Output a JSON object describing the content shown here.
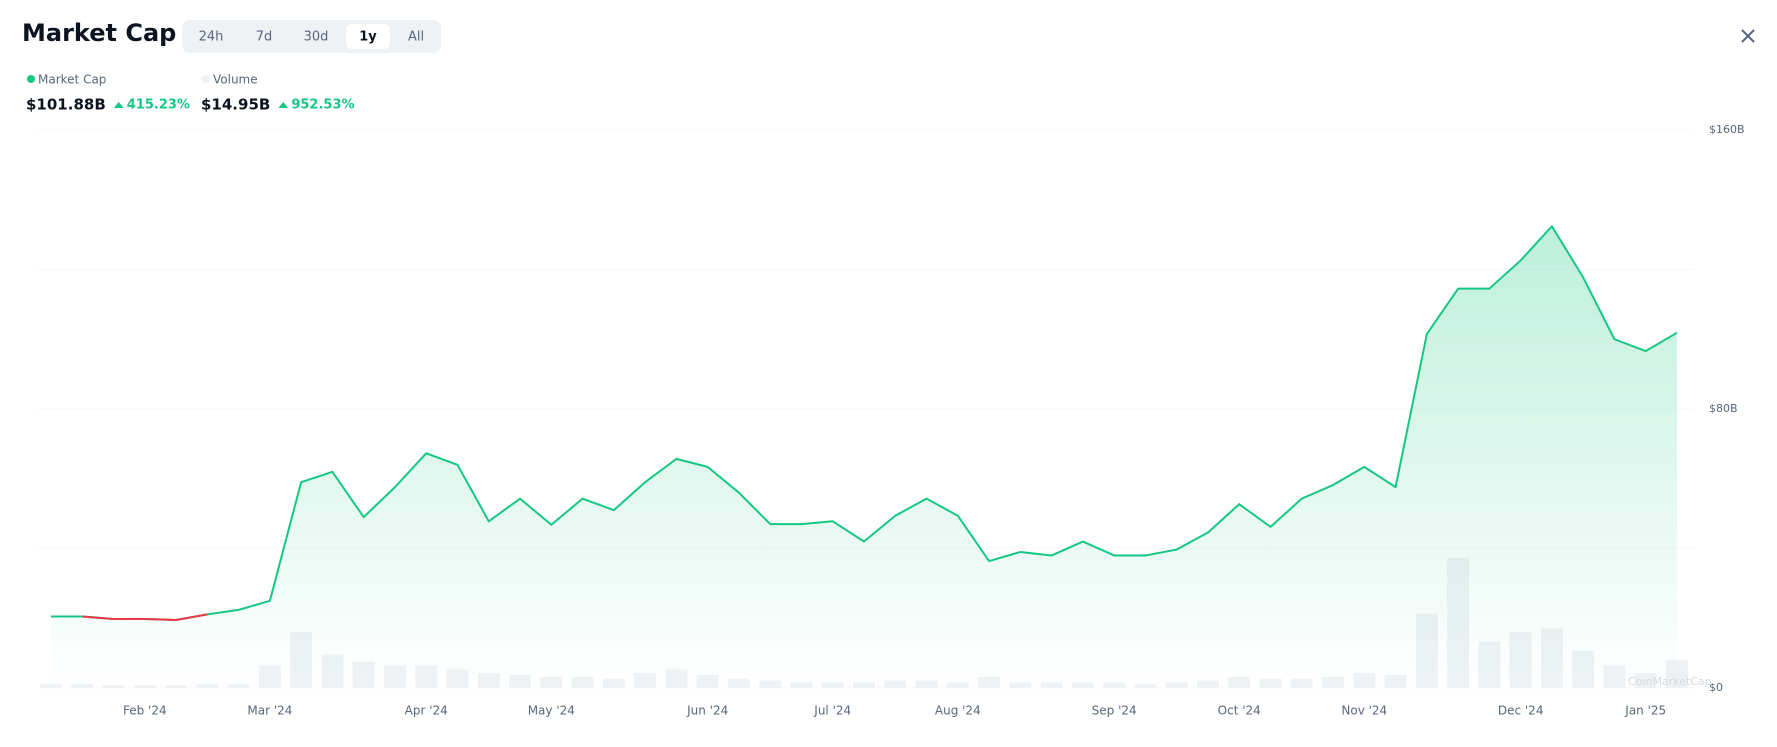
{
  "toolbar": {
    "ranges": [
      "24h",
      "7d",
      "30d",
      "1y",
      "All"
    ],
    "selected": "1y"
  },
  "chart_data": {
    "type": "line",
    "title": "Market Cap",
    "categories": [
      null,
      null,
      null,
      "Feb '24",
      null,
      null,
      null,
      "Mar '24",
      null,
      null,
      null,
      null,
      "Apr '24",
      null,
      null,
      null,
      "May '24",
      null,
      null,
      null,
      null,
      "Jun '24",
      null,
      null,
      null,
      "Jul '24",
      null,
      null,
      null,
      "Aug '24",
      null,
      null,
      null,
      null,
      "Sep '24",
      null,
      null,
      null,
      "Oct '24",
      null,
      null,
      null,
      "Nov '24",
      null,
      null,
      null,
      null,
      "Dec '24",
      null,
      null,
      null,
      "Jan '25",
      null
    ],
    "series": [
      {
        "name": "Market Cap",
        "color": "#16c784",
        "down_color": "#ea3943",
        "current_label": "$101.88B",
        "change_label": "415.23%",
        "values": [
          20.5,
          20.5,
          19.8,
          19.8,
          19.5,
          21.1,
          22.4,
          25,
          59,
          62,
          49,
          57.6,
          67.3,
          64,
          47.8,
          54.3,
          46.8,
          54.3,
          51,
          59,
          65.7,
          63.4,
          56,
          47,
          47,
          47.8,
          42,
          49.4,
          54.3,
          49.4,
          36.4,
          39,
          38,
          42,
          38,
          38,
          39.7,
          44.6,
          52.7,
          46.2,
          54.3,
          58.2,
          63.4,
          57.6,
          101.5,
          114.5,
          114.5,
          122.6,
          132.4,
          117.7,
          100,
          96.6,
          101.88
        ]
      },
      {
        "name": "Volume",
        "color": "#eff2f5",
        "axis": "y2",
        "current_label": "$14.95B",
        "change_label": "952.53%",
        "values": [
          2,
          2,
          1.5,
          1.5,
          1.5,
          2,
          2,
          12,
          30,
          18,
          14,
          12,
          12,
          10,
          8,
          7,
          6,
          6,
          5,
          8,
          10,
          7,
          5,
          4,
          3,
          3,
          3,
          4,
          4,
          3,
          6,
          3,
          3,
          3,
          3,
          2,
          3,
          4,
          6,
          5,
          5,
          6,
          8,
          7,
          40,
          70,
          25,
          30,
          32,
          20,
          12,
          8,
          14.95
        ]
      }
    ],
    "ylim": [
      0,
      160
    ],
    "yticks": [
      {
        "value": 0,
        "label": "$0"
      },
      {
        "value": 80,
        "label": "$80B"
      },
      {
        "value": 160,
        "label": "$160B"
      }
    ],
    "ygrid": [
      0,
      40,
      80,
      120,
      160
    ],
    "y2lim": [
      0,
      300
    ],
    "watermark": "CoinMarketCap"
  }
}
